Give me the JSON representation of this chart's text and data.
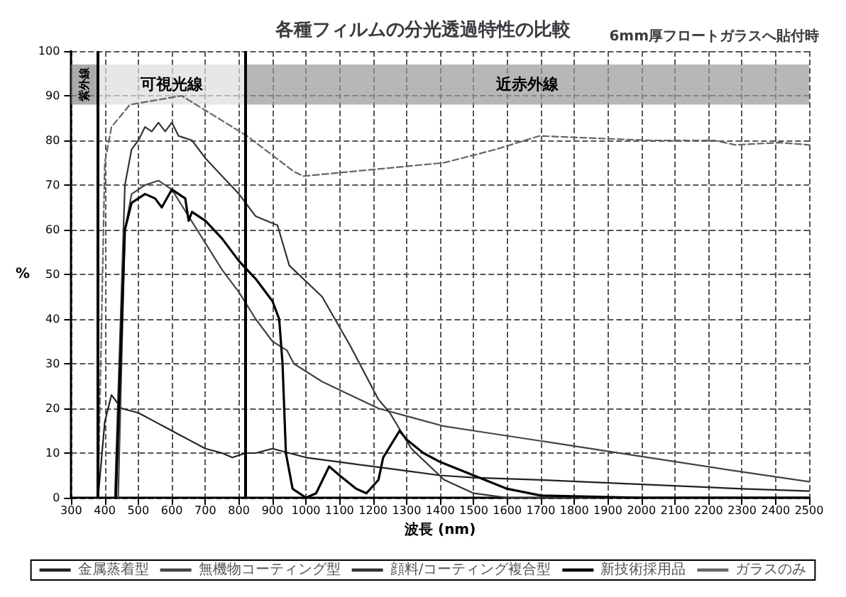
{
  "chart_data": {
    "type": "line",
    "title": "各種フィルムの分光透過特性の比較",
    "subtitle": "6mm厚フロートガラスへ貼付時",
    "xlabel": "波長 (nm)",
    "ylabel": "%",
    "xlim": [
      300,
      2500
    ],
    "xticks": [
      300,
      400,
      500,
      600,
      700,
      800,
      900,
      1000,
      1100,
      1200,
      1300,
      1400,
      1500,
      1600,
      1700,
      1800,
      1900,
      2000,
      2100,
      2200,
      2300,
      2400,
      2500
    ],
    "ylim": [
      0,
      100
    ],
    "yticks": [
      0,
      10,
      20,
      30,
      40,
      50,
      60,
      70,
      80,
      90,
      100
    ],
    "grid": true,
    "legend": "bottom",
    "marker": "none",
    "ref_lines": [
      {
        "axis": "x",
        "value": 380,
        "color": "#000000"
      },
      {
        "axis": "x",
        "value": 820,
        "color": "#000000"
      }
    ],
    "bands": [
      {
        "axis": "x",
        "from": 300,
        "to": 380,
        "label": "紫外線",
        "color": "#888888"
      },
      {
        "axis": "x",
        "from": 380,
        "to": 820,
        "label": "可視光線",
        "color": "#dddddd"
      },
      {
        "axis": "x",
        "from": 820,
        "to": 2500,
        "label": "近赤外線",
        "color": "#999999"
      }
    ],
    "series": [
      {
        "name": "金属蒸着型",
        "color": "#222222",
        "line_style": "solid",
        "x": [
          380,
          400,
          420,
          450,
          500,
          550,
          600,
          650,
          700,
          750,
          780,
          820,
          850,
          900,
          950,
          1000,
          1100,
          1200,
          1300,
          1400,
          1500,
          1700,
          2000,
          2300,
          2500
        ],
        "values": [
          0,
          17,
          23,
          20,
          19,
          17,
          15,
          13,
          11,
          10,
          9,
          10,
          10,
          11,
          10,
          9,
          8,
          7,
          6,
          5,
          4.5,
          4,
          3,
          2,
          1.5
        ]
      },
      {
        "name": "無機物コーティング型",
        "color": "#444444",
        "line_style": "solid",
        "x": [
          440,
          460,
          480,
          520,
          560,
          600,
          650,
          700,
          750,
          800,
          850,
          900,
          943,
          964,
          1048,
          1216,
          1314,
          1412,
          1500,
          1762,
          2022,
          2280,
          2500
        ],
        "values": [
          0,
          60,
          68,
          70,
          71,
          69,
          63,
          57,
          51,
          46,
          40,
          35,
          33,
          30,
          26,
          20,
          18,
          16,
          15,
          12,
          9,
          6,
          3.6
        ]
      },
      {
        "name": "顔料/コーティング複合型",
        "color": "#333333",
        "line_style": "solid",
        "x": [
          430,
          460,
          480,
          500,
          520,
          540,
          560,
          580,
          600,
          620,
          660,
          700,
          750,
          800,
          850,
          915,
          950,
          1048,
          1132,
          1216,
          1250,
          1314,
          1412,
          1500,
          1600,
          2500
        ],
        "values": [
          0,
          70,
          78,
          80,
          83,
          82,
          84,
          82,
          84,
          81,
          80,
          76,
          72,
          68,
          63,
          61,
          52,
          45,
          34,
          22,
          19,
          11,
          4,
          1,
          0,
          0
        ]
      },
      {
        "name": "新技術採用品",
        "color": "#000000",
        "line_style": "solid",
        "x": [
          433,
          460,
          480,
          520,
          550,
          570,
          600,
          640,
          650,
          660,
          700,
          750,
          800,
          850,
          900,
          920,
          930,
          940,
          960,
          1000,
          1030,
          1069,
          1100,
          1150,
          1180,
          1216,
          1230,
          1279,
          1300,
          1350,
          1400,
          1500,
          1600,
          1700,
          2000,
          2500
        ],
        "values": [
          0,
          60,
          66,
          68,
          67,
          65,
          69,
          67,
          62,
          64,
          62,
          58,
          53,
          49,
          44,
          40,
          30,
          10,
          2,
          0,
          1,
          7,
          5,
          2,
          1,
          4,
          9,
          15,
          13,
          10,
          8,
          5,
          2,
          0.5,
          0,
          0
        ]
      },
      {
        "name": "ガラスのみ",
        "color": "#666666",
        "line_style": "dashed",
        "x": [
          380,
          400,
          420,
          475,
          629,
          824,
          964,
          992,
          1412,
          1567,
          1696,
          2022,
          2217,
          2280,
          2412,
          2500
        ],
        "values": [
          0,
          75,
          83,
          88,
          90,
          81,
          73,
          72,
          75,
          78,
          81,
          80,
          80,
          79,
          79.5,
          79
        ]
      }
    ]
  }
}
